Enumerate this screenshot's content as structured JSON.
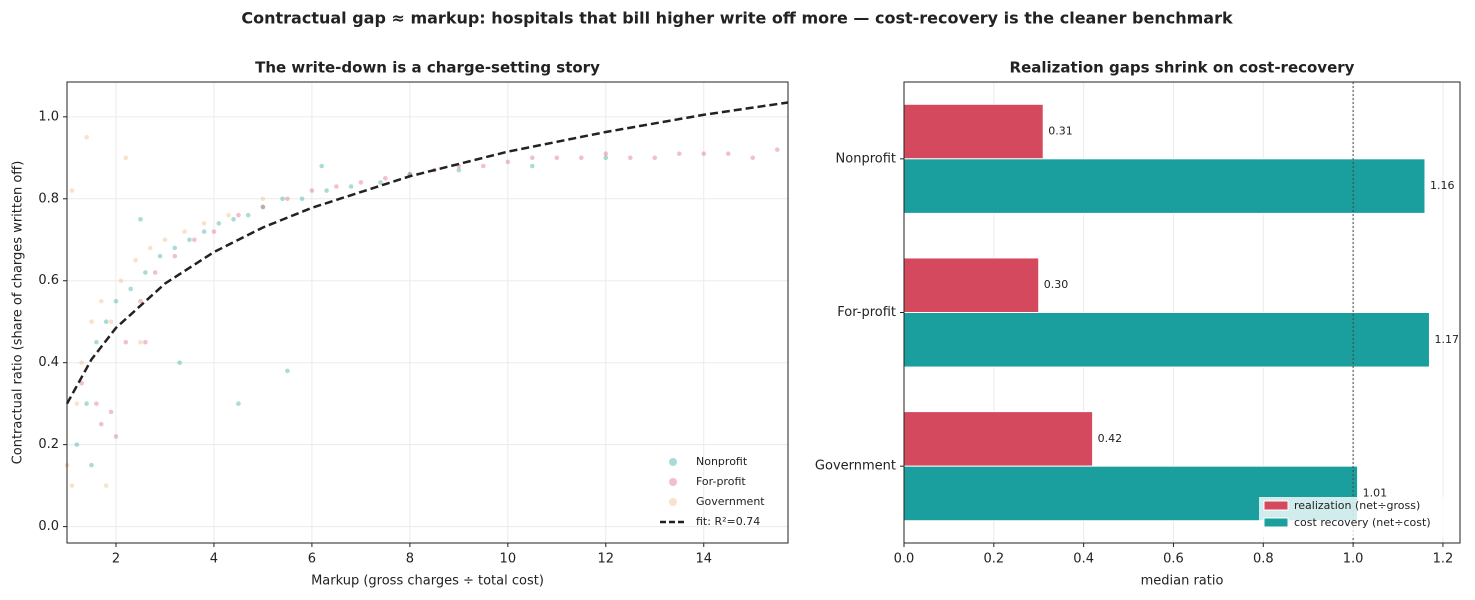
{
  "title": "Contractual gap ≈ markup: hospitals that bill higher write off more — cost-recovery is the cleaner benchmark",
  "chart_data": [
    {
      "type": "scatter",
      "title": "The write-down is a charge-setting story",
      "xlabel": "Markup  (gross charges ÷ total cost)",
      "ylabel": "Contractual ratio  (share of charges written off)",
      "xlim": [
        1.0,
        15.72
      ],
      "ylim": [
        -0.04,
        1.085
      ],
      "xticks": [
        2,
        4,
        6,
        8,
        10,
        12,
        14
      ],
      "yticks": [
        {
          "value": 0,
          "label": "0.0"
        },
        0.2,
        0.4,
        0.6,
        0.8,
        {
          "value": 1,
          "label": "1.0"
        }
      ],
      "grid": true,
      "legend": "lower right",
      "series": [
        {
          "name": "Nonprofit",
          "color": "#2aa6a0",
          "x": [
            1.2,
            1.4,
            1.6,
            1.8,
            2.0,
            2.3,
            2.6,
            2.9,
            3.2,
            3.5,
            3.8,
            4.1,
            4.4,
            4.7,
            5.0,
            5.4,
            5.8,
            6.3,
            6.8,
            7.4,
            8.0,
            9.0,
            10.5,
            12.0,
            1.5,
            2.5,
            3.3,
            4.5,
            5.5,
            6.2
          ],
          "y": [
            0.2,
            0.3,
            0.45,
            0.5,
            0.55,
            0.58,
            0.62,
            0.66,
            0.68,
            0.7,
            0.72,
            0.74,
            0.75,
            0.76,
            0.78,
            0.8,
            0.8,
            0.82,
            0.83,
            0.84,
            0.86,
            0.87,
            0.88,
            0.9,
            0.15,
            0.75,
            0.4,
            0.3,
            0.38,
            0.88
          ]
        },
        {
          "name": "For-profit",
          "color": "#d9637a",
          "x": [
            1.3,
            1.6,
            1.9,
            2.2,
            2.5,
            2.8,
            3.2,
            3.6,
            4.0,
            4.5,
            5.0,
            5.5,
            6.0,
            6.5,
            7.0,
            7.5,
            8.0,
            8.5,
            9.0,
            9.5,
            10.0,
            10.5,
            11.0,
            11.5,
            12.0,
            12.5,
            13.0,
            13.5,
            14.0,
            14.5,
            15.0,
            15.5,
            1.7,
            2.0,
            2.6
          ],
          "y": [
            0.35,
            0.3,
            0.28,
            0.45,
            0.55,
            0.62,
            0.66,
            0.7,
            0.72,
            0.76,
            0.78,
            0.8,
            0.82,
            0.83,
            0.84,
            0.85,
            0.86,
            0.87,
            0.88,
            0.88,
            0.89,
            0.9,
            0.9,
            0.9,
            0.91,
            0.9,
            0.9,
            0.91,
            0.91,
            0.91,
            0.9,
            0.92,
            0.25,
            0.22,
            0.45
          ]
        },
        {
          "name": "Government",
          "color": "#f0b77e",
          "x": [
            1.0,
            1.1,
            1.2,
            1.3,
            1.5,
            1.7,
            1.9,
            2.1,
            2.4,
            2.7,
            3.0,
            3.4,
            3.8,
            4.3,
            5.0,
            1.1,
            1.4,
            1.8,
            2.2,
            2.5
          ],
          "y": [
            0.15,
            0.1,
            0.3,
            0.4,
            0.5,
            0.55,
            0.5,
            0.6,
            0.65,
            0.68,
            0.7,
            0.72,
            0.74,
            0.76,
            0.8,
            0.82,
            0.95,
            0.1,
            0.9,
            0.45
          ]
        }
      ],
      "fit": {
        "name": "fit: R²=0.74",
        "color": "#222222",
        "x": [
          1,
          1.5,
          2,
          3,
          4,
          5,
          6,
          8,
          10,
          12,
          14,
          15.72
        ],
        "y": [
          0.3,
          0.408,
          0.485,
          0.593,
          0.67,
          0.73,
          0.778,
          0.855,
          0.915,
          0.963,
          1.005,
          1.035
        ]
      }
    },
    {
      "type": "barh",
      "title": "Realization gaps shrink on cost-recovery",
      "xlabel": "median ratio",
      "categories": [
        "Nonprofit",
        "For-profit",
        "Government"
      ],
      "xlim": [
        0,
        1.238
      ],
      "xticks": [
        {
          "value": 0,
          "label": "0.0"
        },
        0.2,
        0.4,
        0.6,
        0.8,
        {
          "value": 1,
          "label": "1.0"
        },
        1.2
      ],
      "grid": true,
      "legend": "lower right",
      "reference_line": 1,
      "series": [
        {
          "name": "realization (net÷gross)",
          "color": "#d4495d",
          "values": [
            0.31,
            0.3,
            0.42
          ],
          "value_labels": [
            "0.31",
            "0.30",
            "0.42"
          ]
        },
        {
          "name": "cost recovery (net÷cost)",
          "color": "#1b9e9e",
          "values": [
            1.16,
            1.17,
            1.01
          ],
          "value_labels": [
            "1.16",
            "1.17",
            "1.01"
          ]
        }
      ]
    }
  ]
}
